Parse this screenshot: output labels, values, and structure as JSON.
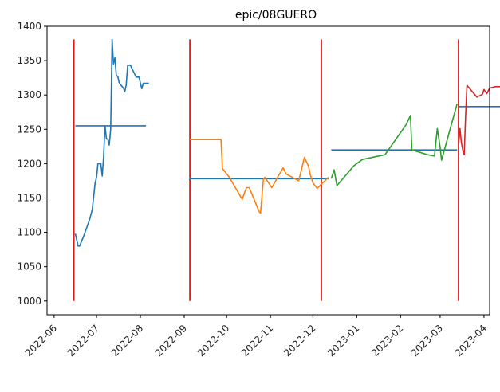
{
  "chart_data": {
    "type": "line",
    "title": "epic/08GUERO",
    "xlabel": "",
    "ylabel": "",
    "x_type": "date",
    "xlim": [
      "2022-05-27",
      "2023-04-05"
    ],
    "ylim": [
      980,
      1400
    ],
    "x_ticks": [
      "2022-06",
      "2022-07",
      "2022-08",
      "2022-09",
      "2022-10",
      "2022-11",
      "2022-12",
      "2023-01",
      "2023-02",
      "2023-03",
      "2023-04"
    ],
    "x_tick_dates": [
      "2022-06-01",
      "2022-07-01",
      "2022-08-01",
      "2022-09-01",
      "2022-10-01",
      "2022-11-01",
      "2022-12-01",
      "2023-01-01",
      "2023-02-01",
      "2023-03-01",
      "2023-04-01"
    ],
    "y_ticks": [
      1000,
      1050,
      1100,
      1150,
      1200,
      1250,
      1300,
      1350,
      1400
    ],
    "grid": false,
    "legend": "none",
    "series": [
      {
        "color": "#1f77b4",
        "points": [
          [
            "2022-06-16",
            1098
          ],
          [
            "2022-06-17",
            1089
          ],
          [
            "2022-06-18",
            1080
          ],
          [
            "2022-06-19",
            1080
          ],
          [
            "2022-06-22",
            1095
          ],
          [
            "2022-06-26",
            1118
          ],
          [
            "2022-06-28",
            1133
          ],
          [
            "2022-06-30",
            1172
          ],
          [
            "2022-07-01",
            1180
          ],
          [
            "2022-07-02",
            1200
          ],
          [
            "2022-07-04",
            1200
          ],
          [
            "2022-07-05",
            1182
          ],
          [
            "2022-07-06",
            1210
          ],
          [
            "2022-07-07",
            1255
          ],
          [
            "2022-07-08",
            1236
          ],
          [
            "2022-07-09",
            1236
          ],
          [
            "2022-07-10",
            1227
          ],
          [
            "2022-07-11",
            1250
          ],
          [
            "2022-07-12",
            1381
          ],
          [
            "2022-07-13",
            1345
          ],
          [
            "2022-07-14",
            1354
          ],
          [
            "2022-07-15",
            1328
          ],
          [
            "2022-07-16",
            1327
          ],
          [
            "2022-07-17",
            1318
          ],
          [
            "2022-07-18",
            1315
          ],
          [
            "2022-07-20",
            1310
          ],
          [
            "2022-07-21",
            1305
          ],
          [
            "2022-07-22",
            1315
          ],
          [
            "2022-07-23",
            1343
          ],
          [
            "2022-07-25",
            1343
          ],
          [
            "2022-07-29",
            1326
          ],
          [
            "2022-07-31",
            1326
          ],
          [
            "2022-08-02",
            1309
          ],
          [
            "2022-08-03",
            1317
          ],
          [
            "2022-08-07",
            1317
          ]
        ]
      },
      {
        "color": "#ff7f0e",
        "points": [
          [
            "2022-09-05",
            1235
          ],
          [
            "2022-09-27",
            1235
          ],
          [
            "2022-09-28",
            1193
          ],
          [
            "2022-10-03",
            1180
          ],
          [
            "2022-10-12",
            1148
          ],
          [
            "2022-10-15",
            1165
          ],
          [
            "2022-10-17",
            1165
          ],
          [
            "2022-10-24",
            1130
          ],
          [
            "2022-10-25",
            1128
          ],
          [
            "2022-10-27",
            1177
          ],
          [
            "2022-10-28",
            1180
          ],
          [
            "2022-11-02",
            1165
          ],
          [
            "2022-11-06",
            1180
          ],
          [
            "2022-11-10",
            1194
          ],
          [
            "2022-11-12",
            1185
          ],
          [
            "2022-11-21",
            1175
          ],
          [
            "2022-11-25",
            1209
          ],
          [
            "2022-11-28",
            1196
          ],
          [
            "2022-11-29",
            1185
          ],
          [
            "2022-12-01",
            1172
          ],
          [
            "2022-12-04",
            1164
          ],
          [
            "2022-12-07",
            1170
          ],
          [
            "2022-12-12",
            1180
          ]
        ]
      },
      {
        "color": "#2ca02c",
        "points": [
          [
            "2022-12-14",
            1178
          ],
          [
            "2022-12-16",
            1191
          ],
          [
            "2022-12-18",
            1168
          ],
          [
            "2022-12-30",
            1197
          ],
          [
            "2023-01-05",
            1206
          ],
          [
            "2023-01-21",
            1213
          ],
          [
            "2023-02-05",
            1257
          ],
          [
            "2023-02-08",
            1270
          ],
          [
            "2023-02-09",
            1220
          ],
          [
            "2023-02-20",
            1213
          ],
          [
            "2023-02-25",
            1211
          ],
          [
            "2023-02-27",
            1251
          ],
          [
            "2023-03-01",
            1224
          ],
          [
            "2023-03-02",
            1205
          ],
          [
            "2023-03-13",
            1287
          ]
        ]
      },
      {
        "color": "#d62728",
        "points": [
          [
            "2023-03-14",
            1226
          ],
          [
            "2023-03-15",
            1251
          ],
          [
            "2023-03-16",
            1231
          ],
          [
            "2023-03-17",
            1220
          ],
          [
            "2023-03-18",
            1213
          ],
          [
            "2023-03-19",
            1270
          ],
          [
            "2023-03-20",
            1314
          ],
          [
            "2023-03-27",
            1297
          ],
          [
            "2023-03-31",
            1301
          ],
          [
            "2023-04-01",
            1308
          ],
          [
            "2023-04-03",
            1302
          ],
          [
            "2023-04-05",
            1310
          ],
          [
            "2023-04-09",
            1312
          ],
          [
            "2023-04-13",
            1312
          ]
        ]
      }
    ],
    "horizontal_segments": [
      {
        "color": "#1f77b4",
        "x0": "2022-06-16",
        "x1": "2022-08-05",
        "y": 1255
      },
      {
        "color": "#1f77b4",
        "x0": "2022-09-05",
        "x1": "2022-12-12",
        "y": 1178
      },
      {
        "color": "#1f77b4",
        "x0": "2022-12-14",
        "x1": "2023-03-13",
        "y": 1220
      },
      {
        "color": "#1f77b4",
        "x0": "2023-03-14",
        "x1": "2023-04-13",
        "y": 1283
      }
    ],
    "vertical_lines": [
      {
        "color": "#e31a1c",
        "x": "2022-06-15",
        "y0": 1000,
        "y1": 1381
      },
      {
        "color": "#e31a1c",
        "x": "2022-09-05",
        "y0": 1000,
        "y1": 1381
      },
      {
        "color": "#e31a1c",
        "x": "2022-12-07",
        "y0": 1000,
        "y1": 1381
      },
      {
        "color": "#e31a1c",
        "x": "2023-03-14",
        "y0": 1000,
        "y1": 1381
      }
    ]
  }
}
